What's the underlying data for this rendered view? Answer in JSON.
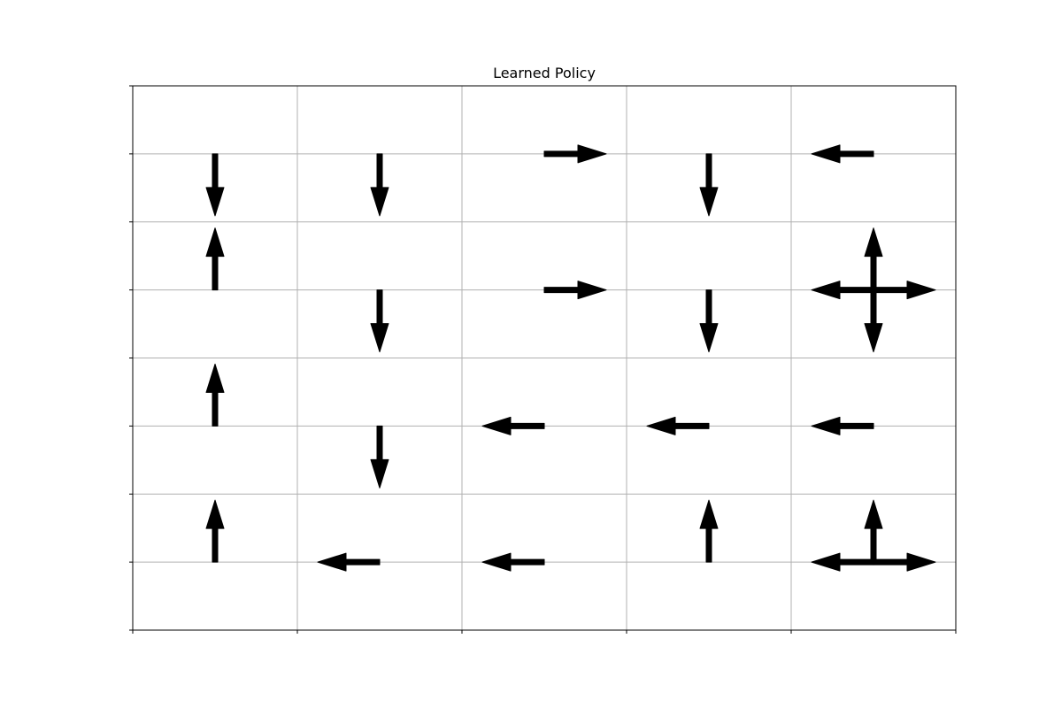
{
  "chart_data": {
    "type": "quiver",
    "title": "Learned Policy",
    "xlabel": "",
    "ylabel": "",
    "xlim": [
      0,
      5
    ],
    "ylim": [
      0,
      4
    ],
    "grid": true,
    "grid_color": "#b0b0b0",
    "arrow_color": "#000000",
    "x_ticks": [
      0,
      1,
      2,
      3,
      4,
      5
    ],
    "y_ticks": [
      0,
      0.5,
      1,
      1.5,
      2,
      2.5,
      3,
      3.5,
      4
    ],
    "x_tick_labels_visible": false,
    "y_tick_labels_visible": false,
    "cells": [
      {
        "row": 0,
        "col": 0,
        "actions": [
          "down"
        ]
      },
      {
        "row": 0,
        "col": 1,
        "actions": [
          "down"
        ]
      },
      {
        "row": 0,
        "col": 2,
        "actions": [
          "right"
        ]
      },
      {
        "row": 0,
        "col": 3,
        "actions": [
          "down"
        ]
      },
      {
        "row": 0,
        "col": 4,
        "actions": [
          "left"
        ]
      },
      {
        "row": 1,
        "col": 0,
        "actions": [
          "up"
        ]
      },
      {
        "row": 1,
        "col": 1,
        "actions": [
          "down"
        ]
      },
      {
        "row": 1,
        "col": 2,
        "actions": [
          "right"
        ]
      },
      {
        "row": 1,
        "col": 3,
        "actions": [
          "down"
        ]
      },
      {
        "row": 1,
        "col": 4,
        "actions": [
          "up",
          "down",
          "left",
          "right"
        ]
      },
      {
        "row": 2,
        "col": 0,
        "actions": [
          "up"
        ]
      },
      {
        "row": 2,
        "col": 1,
        "actions": [
          "down"
        ]
      },
      {
        "row": 2,
        "col": 2,
        "actions": [
          "left"
        ]
      },
      {
        "row": 2,
        "col": 3,
        "actions": [
          "left"
        ]
      },
      {
        "row": 2,
        "col": 4,
        "actions": [
          "left"
        ]
      },
      {
        "row": 3,
        "col": 0,
        "actions": [
          "up"
        ]
      },
      {
        "row": 3,
        "col": 1,
        "actions": [
          "left"
        ]
      },
      {
        "row": 3,
        "col": 2,
        "actions": [
          "left"
        ]
      },
      {
        "row": 3,
        "col": 3,
        "actions": [
          "up"
        ]
      },
      {
        "row": 3,
        "col": 4,
        "actions": [
          "up",
          "left",
          "right"
        ]
      }
    ]
  }
}
